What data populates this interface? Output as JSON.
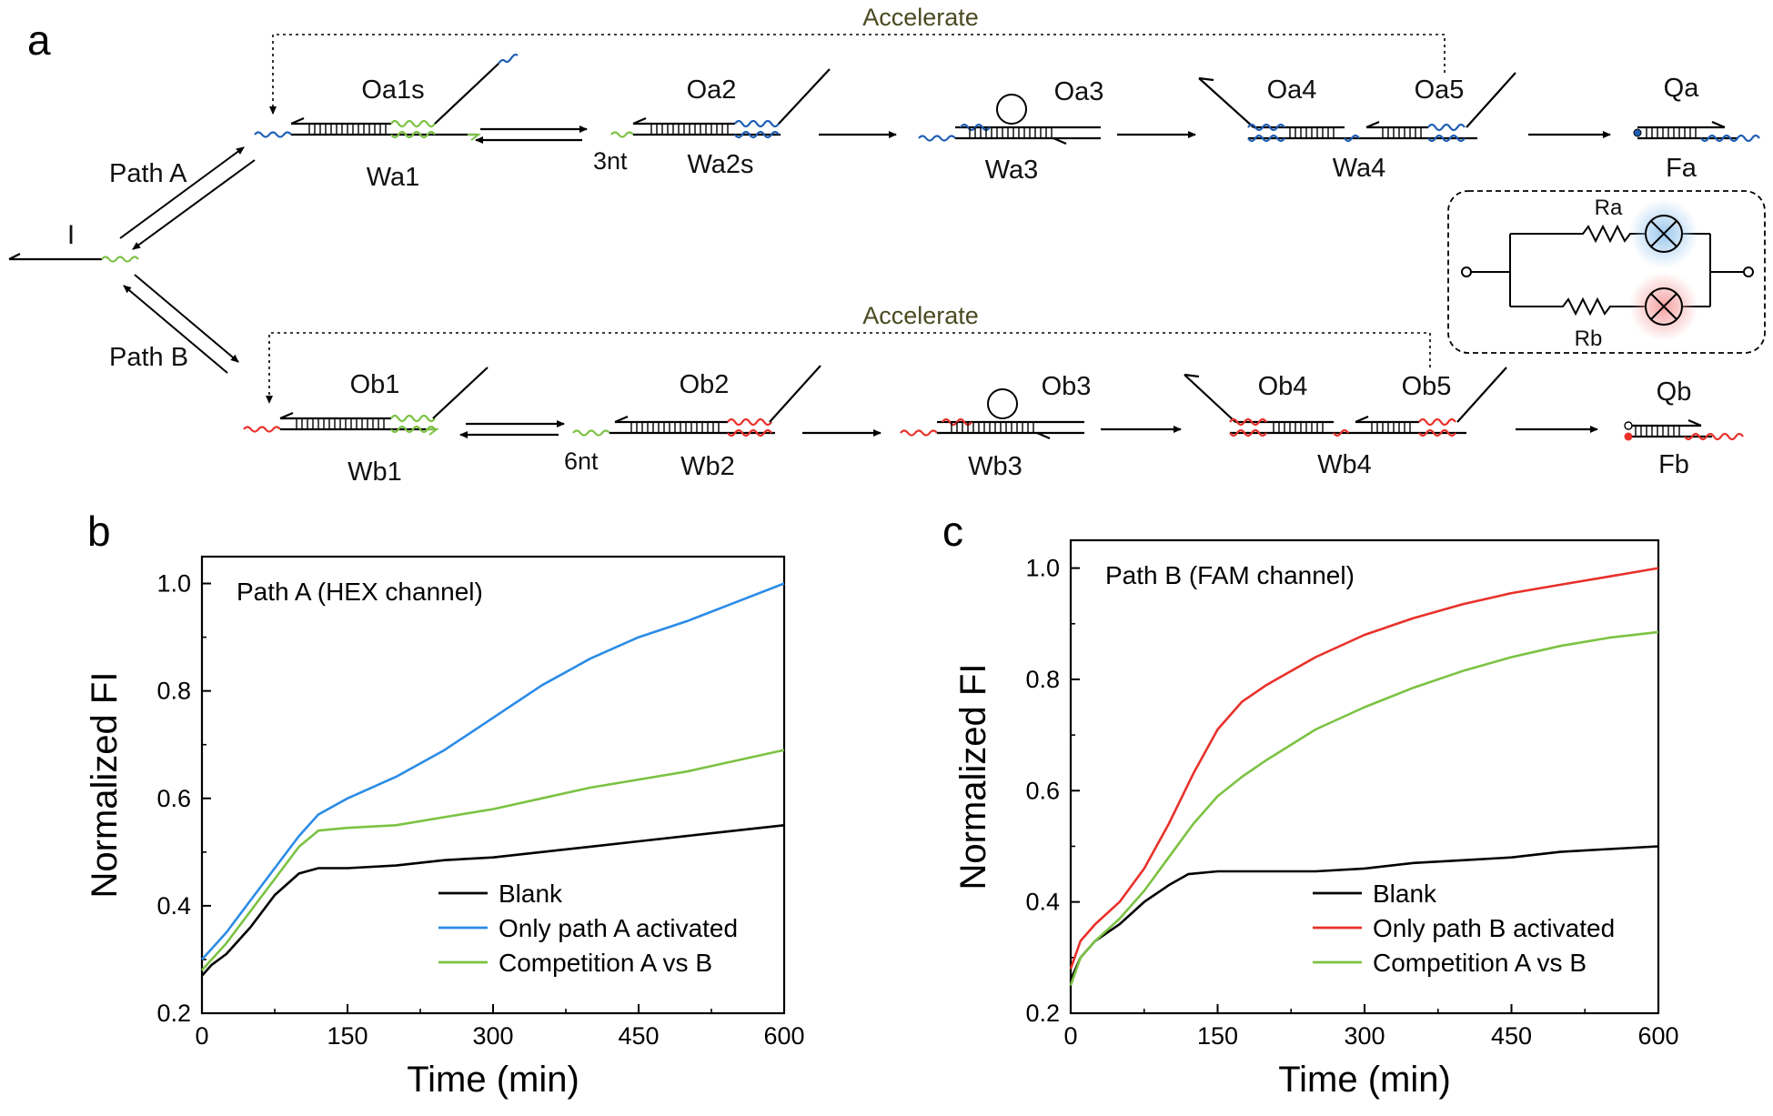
{
  "panels": {
    "a": "a",
    "b": "b",
    "c": "c"
  },
  "scheme": {
    "accelerate_top": "Accelerate",
    "accelerate_bottom": "Accelerate",
    "path_a": "Path A",
    "path_b": "Path B",
    "input": "I",
    "nt_a": "3nt",
    "nt_b": "6nt",
    "top_labels": [
      "Oa1s",
      "Oa2",
      "Oa3",
      "Oa4",
      "Oa5",
      "Qa"
    ],
    "top_sublabels": [
      "Wa1",
      "Wa2s",
      "Wa3",
      "Wa4",
      "Fa"
    ],
    "bottom_labels": [
      "Ob1",
      "Ob2",
      "Ob3",
      "Ob4",
      "Ob5",
      "Qb"
    ],
    "bottom_sublabels": [
      "Wb1",
      "Wb2",
      "Wb3",
      "Wb4",
      "Fb"
    ],
    "circuit": {
      "ra": "Ra",
      "rb": "Rb"
    },
    "colors": {
      "green": "#7cc243",
      "blue": "#1f5fb4",
      "red": "#e8312a",
      "blue_glow": "#9cc8ee",
      "red_glow": "#f5a1a1"
    }
  },
  "chart_data": [
    {
      "type": "line",
      "title": "Path A (HEX channel)",
      "xlabel": "Time (min)",
      "ylabel": "Normalized FI",
      "xlim": [
        0,
        600
      ],
      "ylim": [
        0.2,
        1.05
      ],
      "xticks": [
        0,
        150,
        300,
        450,
        600
      ],
      "yticks": [
        0.2,
        0.4,
        0.6,
        0.8,
        1.0
      ],
      "xtick_labels": [
        "0",
        "150",
        "300",
        "450",
        "600"
      ],
      "ytick_labels": [
        "0.2",
        "0.4",
        "0.6",
        "0.8",
        "1.0"
      ],
      "legend": "bottom-right",
      "series": [
        {
          "name": "Blank",
          "color": "#000000",
          "x": [
            0,
            10,
            25,
            50,
            75,
            100,
            120,
            150,
            200,
            250,
            300,
            350,
            400,
            450,
            500,
            550,
            600
          ],
          "y": [
            0.27,
            0.29,
            0.31,
            0.36,
            0.42,
            0.46,
            0.47,
            0.47,
            0.475,
            0.485,
            0.49,
            0.5,
            0.51,
            0.52,
            0.53,
            0.54,
            0.55
          ]
        },
        {
          "name": "Only path A activated",
          "color": "#2b8ce6",
          "x": [
            0,
            10,
            25,
            50,
            75,
            100,
            120,
            150,
            200,
            250,
            300,
            350,
            400,
            450,
            500,
            550,
            600
          ],
          "y": [
            0.3,
            0.32,
            0.35,
            0.41,
            0.47,
            0.53,
            0.57,
            0.6,
            0.64,
            0.69,
            0.75,
            0.81,
            0.86,
            0.9,
            0.93,
            0.965,
            1.0
          ]
        },
        {
          "name": "Competition A vs B",
          "color": "#7cc243",
          "x": [
            0,
            10,
            25,
            50,
            75,
            100,
            120,
            150,
            200,
            250,
            300,
            350,
            400,
            450,
            500,
            550,
            600
          ],
          "y": [
            0.28,
            0.3,
            0.33,
            0.39,
            0.45,
            0.51,
            0.54,
            0.545,
            0.55,
            0.565,
            0.58,
            0.6,
            0.62,
            0.635,
            0.65,
            0.67,
            0.69
          ]
        }
      ]
    },
    {
      "type": "line",
      "title": "Path B (FAM channel)",
      "xlabel": "Time (min)",
      "ylabel": "Normalized FI",
      "xlim": [
        0,
        600
      ],
      "ylim": [
        0.2,
        1.05
      ],
      "xticks": [
        0,
        150,
        300,
        450,
        600
      ],
      "yticks": [
        0.2,
        0.4,
        0.6,
        0.8,
        1.0
      ],
      "xtick_labels": [
        "0",
        "150",
        "300",
        "450",
        "600"
      ],
      "ytick_labels": [
        "0.2",
        "0.4",
        "0.6",
        "0.8",
        "1.0"
      ],
      "legend": "bottom-right",
      "series": [
        {
          "name": "Blank",
          "color": "#000000",
          "x": [
            0,
            10,
            25,
            50,
            75,
            100,
            120,
            150,
            200,
            250,
            300,
            350,
            400,
            450,
            500,
            550,
            600
          ],
          "y": [
            0.26,
            0.3,
            0.33,
            0.36,
            0.4,
            0.43,
            0.45,
            0.455,
            0.455,
            0.455,
            0.46,
            0.47,
            0.475,
            0.48,
            0.49,
            0.495,
            0.5
          ]
        },
        {
          "name": "Only path B activated",
          "color": "#e8312a",
          "x": [
            0,
            10,
            25,
            50,
            75,
            100,
            125,
            150,
            175,
            200,
            250,
            300,
            350,
            400,
            450,
            500,
            550,
            600
          ],
          "y": [
            0.28,
            0.33,
            0.36,
            0.4,
            0.46,
            0.54,
            0.63,
            0.71,
            0.76,
            0.79,
            0.84,
            0.88,
            0.91,
            0.935,
            0.955,
            0.97,
            0.985,
            1.0
          ]
        },
        {
          "name": "Competition A vs B",
          "color": "#7cc243",
          "x": [
            0,
            10,
            25,
            50,
            75,
            100,
            125,
            150,
            175,
            200,
            250,
            300,
            350,
            400,
            450,
            500,
            550,
            600
          ],
          "y": [
            0.25,
            0.3,
            0.33,
            0.37,
            0.42,
            0.48,
            0.54,
            0.59,
            0.625,
            0.655,
            0.71,
            0.75,
            0.785,
            0.815,
            0.84,
            0.86,
            0.875,
            0.885
          ]
        }
      ]
    }
  ]
}
